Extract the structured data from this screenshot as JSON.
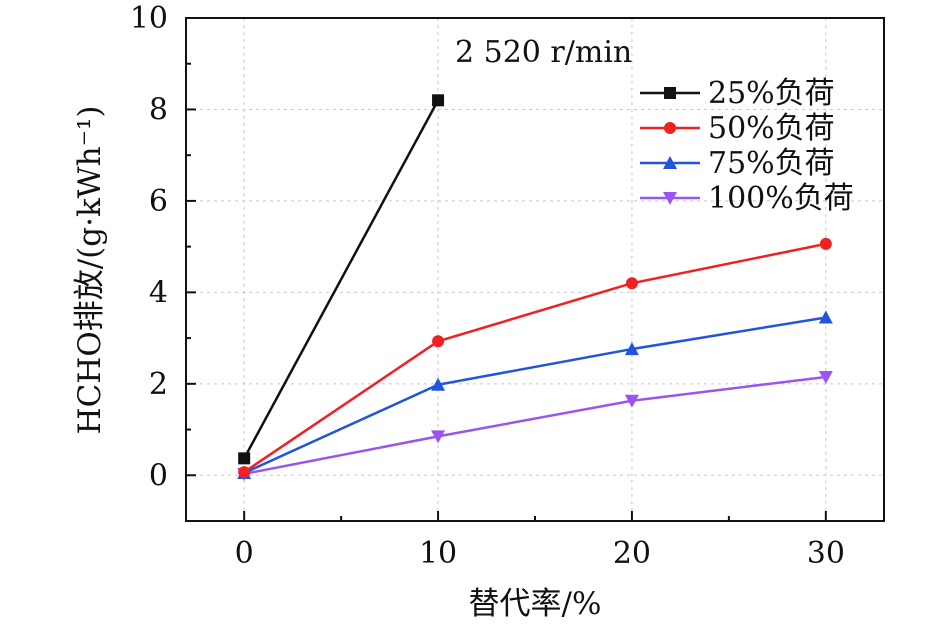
{
  "chart_data": {
    "type": "line",
    "annotation": "2 520 r/min",
    "xlabel": "替代率/%",
    "ylabel": "HCHO排放/(g·kWh⁻¹)",
    "xlim": [
      -3,
      33
    ],
    "ylim": [
      -1,
      10
    ],
    "xticks": [
      0,
      10,
      20,
      30
    ],
    "yticks": [
      0,
      2,
      4,
      6,
      8,
      10
    ],
    "grid": true,
    "legend_position": "top-right",
    "series": [
      {
        "name": "25%负荷",
        "color": "#111111",
        "marker": "square",
        "x": [
          0,
          10
        ],
        "y": [
          0.37,
          8.2
        ]
      },
      {
        "name": "50%负荷",
        "color": "#ee2222",
        "marker": "circle",
        "x": [
          0,
          10,
          20,
          30
        ],
        "y": [
          0.07,
          2.93,
          4.2,
          5.06
        ]
      },
      {
        "name": "75%负荷",
        "color": "#2255dd",
        "marker": "triangle-up",
        "x": [
          0,
          10,
          20,
          30
        ],
        "y": [
          0.05,
          1.98,
          2.76,
          3.45
        ]
      },
      {
        "name": "100%负荷",
        "color": "#9955ee",
        "marker": "triangle-down",
        "x": [
          0,
          10,
          20,
          30
        ],
        "y": [
          0.03,
          0.85,
          1.63,
          2.15
        ]
      }
    ]
  }
}
